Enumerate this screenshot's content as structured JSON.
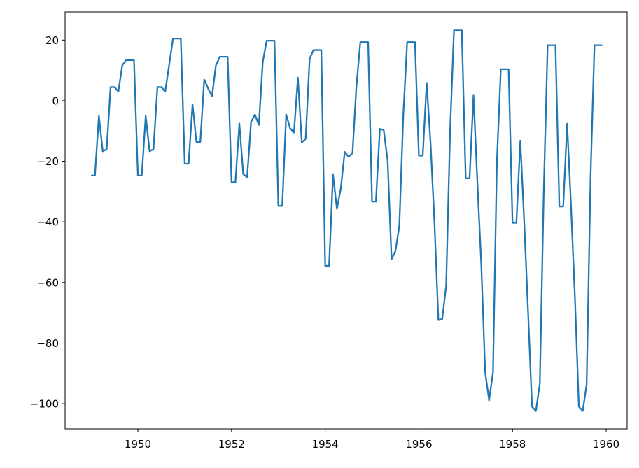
{
  "chart_data": {
    "type": "line",
    "x": [
      1949,
      1949.083,
      1949.167,
      1949.25,
      1949.333,
      1949.417,
      1949.5,
      1949.583,
      1949.667,
      1949.75,
      1949.833,
      1949.917,
      1950,
      1950.083,
      1950.167,
      1950.25,
      1950.333,
      1950.417,
      1950.5,
      1950.583,
      1950.667,
      1950.75,
      1950.833,
      1950.917,
      1951,
      1951.083,
      1951.167,
      1951.25,
      1951.333,
      1951.417,
      1951.5,
      1951.583,
      1951.667,
      1951.75,
      1951.833,
      1951.917,
      1952,
      1952.083,
      1952.167,
      1952.25,
      1952.333,
      1952.417,
      1952.5,
      1952.583,
      1952.667,
      1952.75,
      1952.833,
      1952.917,
      1953,
      1953.083,
      1953.167,
      1953.25,
      1953.333,
      1953.417,
      1953.5,
      1953.583,
      1953.667,
      1953.75,
      1953.833,
      1953.917,
      1954,
      1954.083,
      1954.167,
      1954.25,
      1954.333,
      1954.417,
      1954.5,
      1954.583,
      1954.667,
      1954.75,
      1954.833,
      1954.917,
      1955,
      1955.083,
      1955.167,
      1955.25,
      1955.333,
      1955.417,
      1955.5,
      1955.583,
      1955.667,
      1955.75,
      1955.833,
      1955.917,
      1956,
      1956.083,
      1956.167,
      1956.25,
      1956.333,
      1956.417,
      1956.5,
      1956.583,
      1956.667,
      1956.75,
      1956.833,
      1956.917,
      1957,
      1957.083,
      1957.167,
      1957.25,
      1957.333,
      1957.417,
      1957.5,
      1957.583,
      1957.667,
      1957.75,
      1957.833,
      1957.917,
      1958,
      1958.083,
      1958.167,
      1958.25,
      1958.333,
      1958.417,
      1958.5,
      1958.583,
      1958.667,
      1958.75,
      1958.833,
      1958.917,
      1959,
      1959.083,
      1959.167,
      1959.25,
      1959.333,
      1959.417,
      1959.5,
      1959.583,
      1959.667,
      1959.75,
      1959.833,
      1959.917
    ],
    "values": [
      -24.7,
      -24.7,
      -5,
      -16.7,
      -16,
      4.5,
      4.5,
      3,
      11.7,
      13.4,
      13.4,
      13.4,
      -24.7,
      -24.7,
      -5,
      -16.7,
      -16,
      4.5,
      4.5,
      3,
      11.7,
      20.5,
      20.5,
      20.5,
      -20.8,
      -20.8,
      -1.2,
      -13.6,
      -13.6,
      7,
      4,
      1.5,
      11.7,
      14.5,
      14.5,
      14.5,
      -26.9,
      -26.9,
      -7.5,
      -24.2,
      -25.3,
      -7,
      -4.6,
      -8,
      12.8,
      19.8,
      19.8,
      19.8,
      -34.7,
      -34.7,
      -4.6,
      -9.1,
      -10.5,
      7.6,
      -13.8,
      -12.6,
      13.8,
      16.7,
      16.7,
      16.7,
      -54.5,
      -54.5,
      -24.4,
      -35.7,
      -29,
      -16.9,
      -18.5,
      -17.3,
      4.8,
      19.3,
      19.3,
      19.3,
      -33.3,
      -33.3,
      -9.3,
      -9.7,
      -19.8,
      -52.3,
      -49.6,
      -41.4,
      -5,
      19.3,
      19.3,
      19.3,
      -18.1,
      -18.1,
      5.9,
      -14,
      -40,
      -72.4,
      -72,
      -61,
      -10,
      23.2,
      23.2,
      23.2,
      -25.6,
      -25.6,
      1.7,
      -27,
      -54,
      -89.7,
      -98.9,
      -89.7,
      -20,
      10.4,
      10.4,
      10.4,
      -40.3,
      -40.3,
      -13.2,
      -40,
      -70,
      -101,
      -102.4,
      -93.4,
      -30,
      18.3,
      18.3,
      18.3,
      -34.9,
      -34.9,
      -7.6,
      -35,
      -65,
      -101,
      -102.4,
      -93.6,
      -25,
      18.3,
      18.3,
      18.3
    ],
    "color": "#1f77b4",
    "xlim": [
      1948.445,
      1960.448
    ],
    "ylim": [
      -108.3,
      29.3
    ],
    "xticks": [
      1950,
      1952,
      1954,
      1956,
      1958,
      1960
    ],
    "yticks": [
      {
        "value": -100,
        "label": "−100"
      },
      {
        "value": -80,
        "label": "−80"
      },
      {
        "value": -60,
        "label": "−60"
      },
      {
        "value": -40,
        "label": "−40"
      },
      {
        "value": -20,
        "label": "−20"
      },
      0,
      20
    ],
    "grid": false
  }
}
